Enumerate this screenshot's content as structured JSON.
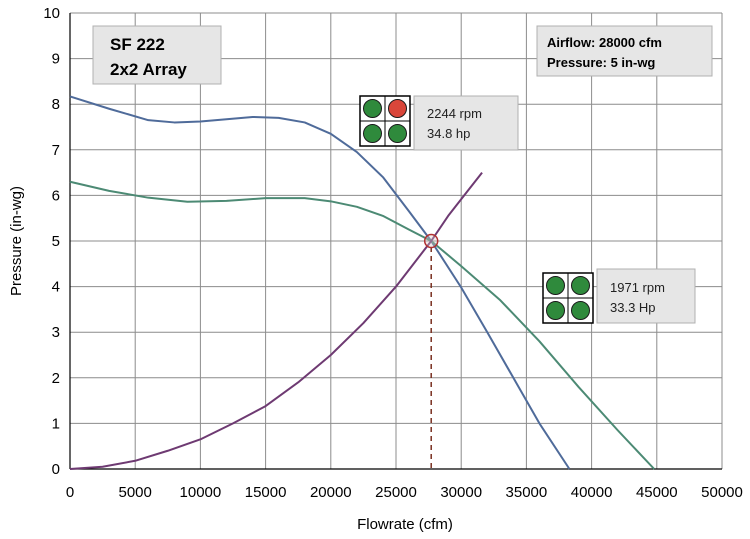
{
  "chart_data": {
    "type": "line",
    "title_box": [
      "SF 222",
      "2x2 Array"
    ],
    "info_box": [
      "Airflow:  28000 cfm",
      "Pressure: 5 in-wg"
    ],
    "xlabel": "Flowrate  (cfm)",
    "ylabel": "Pressure  (in-wg)",
    "xlim": [
      0,
      50000
    ],
    "ylim": [
      0,
      10
    ],
    "xticks": [
      0,
      5000,
      10000,
      15000,
      20000,
      25000,
      30000,
      35000,
      40000,
      45000,
      50000
    ],
    "yticks": [
      0,
      1,
      2,
      3,
      4,
      5,
      6,
      7,
      8,
      9,
      10
    ],
    "grid": true,
    "series": [
      {
        "color": "#4f6b9a",
        "x": [
          0,
          3000,
          6000,
          8000,
          10000,
          12000,
          14000,
          16000,
          18000,
          20000,
          22000,
          24000,
          26000,
          27700,
          30000,
          32000,
          34000,
          36000,
          38300
        ],
        "y": [
          8.17,
          7.9,
          7.65,
          7.6,
          7.62,
          7.67,
          7.72,
          7.7,
          7.6,
          7.35,
          6.95,
          6.4,
          5.65,
          5.0,
          3.98,
          3.0,
          2.0,
          1.0,
          0
        ]
      },
      {
        "color": "#4c8a74",
        "x": [
          0,
          3000,
          6000,
          9000,
          12000,
          15000,
          18000,
          20000,
          22000,
          24000,
          26000,
          27700,
          30000,
          33000,
          36000,
          39000,
          42000,
          44800
        ],
        "y": [
          6.3,
          6.1,
          5.95,
          5.86,
          5.88,
          5.94,
          5.94,
          5.87,
          5.75,
          5.55,
          5.25,
          5.0,
          4.45,
          3.7,
          2.8,
          1.8,
          0.85,
          0
        ]
      },
      {
        "color": "#6e3a72",
        "x": [
          0,
          2500,
          5000,
          7500,
          10000,
          12500,
          15000,
          17500,
          20000,
          22500,
          25000,
          27700,
          29000,
          30500,
          31600
        ],
        "y": [
          0,
          0.05,
          0.18,
          0.4,
          0.65,
          1.0,
          1.38,
          1.9,
          2.5,
          3.2,
          4.0,
          5.0,
          5.55,
          6.1,
          6.5
        ]
      }
    ],
    "operating_point": {
      "x": 27700,
      "y": 5.0
    },
    "annotations": [
      {
        "lines": [
          "2244 rpm",
          "34.8 hp"
        ],
        "fan_status": [
          "on",
          "off",
          "on",
          "on"
        ]
      },
      {
        "lines": [
          "1971 rpm",
          "33.3 Hp"
        ],
        "fan_status": [
          "on",
          "on",
          "on",
          "on"
        ]
      }
    ],
    "colors": {
      "fan_on": "#2f8a3c",
      "fan_off": "#d9463a",
      "grid": "#8c8c8c",
      "box_fill": "#e6e6e6"
    }
  }
}
